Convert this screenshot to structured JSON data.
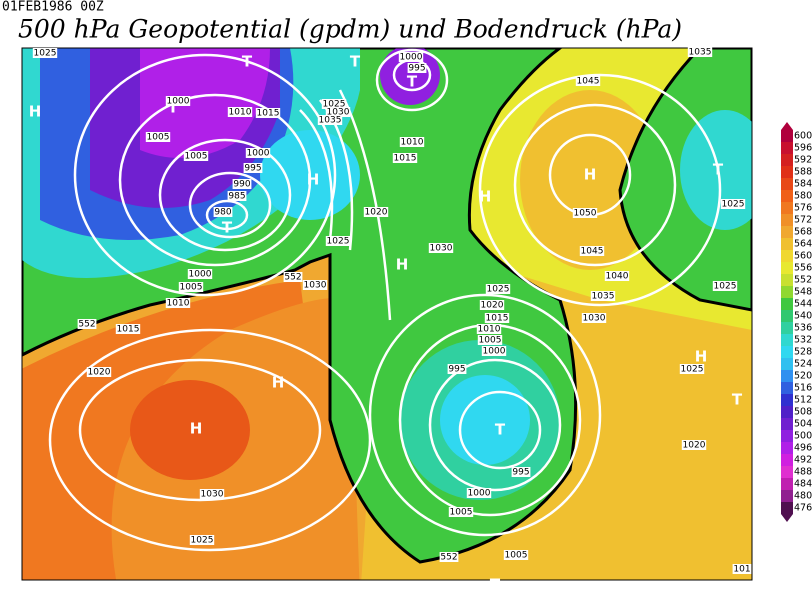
{
  "header": {
    "timestamp": "01FEB1986 00Z",
    "title": "500 hPa Geopotential (gpdm) und Bodendruck (hPa)"
  },
  "colorbar": {
    "levels": [
      600,
      596,
      592,
      588,
      584,
      580,
      576,
      572,
      568,
      564,
      560,
      556,
      552,
      548,
      544,
      540,
      536,
      532,
      528,
      524,
      520,
      516,
      512,
      508,
      504,
      500,
      496,
      492,
      488,
      484,
      480,
      476
    ],
    "colors": [
      "#b0003c",
      "#c8102e",
      "#d42020",
      "#e03018",
      "#e84818",
      "#f06018",
      "#f07820",
      "#f09028",
      "#f0a830",
      "#f0c030",
      "#f0d830",
      "#e8e830",
      "#c8e030",
      "#90d830",
      "#40c840",
      "#30c870",
      "#30d0a0",
      "#30d8d0",
      "#30d8f0",
      "#30c0f0",
      "#3090f0",
      "#3060e0",
      "#3030d0",
      "#5020c8",
      "#7020d0",
      "#9020e0",
      "#b020e8",
      "#d020e0",
      "#e030d0",
      "#c020b0",
      "#902090",
      "#501050"
    ]
  },
  "map": {
    "markers": [
      "T",
      "T",
      "T",
      "H",
      "T",
      "H",
      "T",
      "H",
      "H",
      "H",
      "T",
      "H",
      "H",
      "T",
      "H",
      "T",
      "T"
    ],
    "isobar_labels": [
      "1025",
      "1000",
      "1010",
      "1015",
      "1005",
      "1005",
      "1000",
      "995",
      "990",
      "985",
      "980",
      "1025",
      "1030",
      "1035",
      "1000",
      "995",
      "1010",
      "1015",
      "1020",
      "1025",
      "1030",
      "1045",
      "1050",
      "1045",
      "1040",
      "1035",
      "1030",
      "1025",
      "1025",
      "1025",
      "1020",
      "1015",
      "1010",
      "1005",
      "1000",
      "995",
      "995",
      "1000",
      "1005",
      "1005",
      "1025",
      "1020",
      "1030",
      "1030",
      "1025",
      "1000",
      "1005",
      "1010",
      "1015",
      "1020",
      "552",
      "552",
      "552",
      "1035",
      "101"
    ]
  }
}
